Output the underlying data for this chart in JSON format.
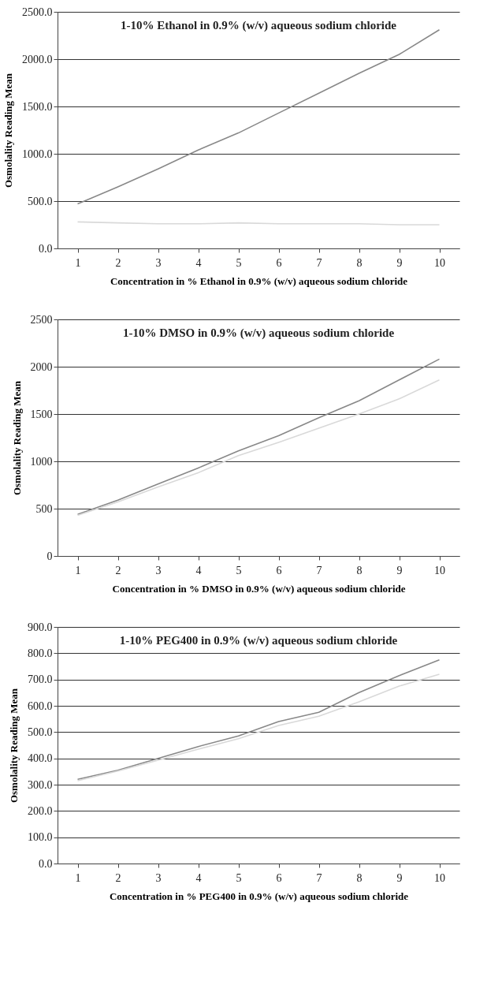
{
  "chart_data": [
    {
      "type": "line",
      "title": "1-10% Ethanol in 0.9% (w/v) aqueous sodium chloride",
      "xlabel": "Concentration in % Ethanol in 0.9% (w/v) aqueous sodium chloride",
      "ylabel": "Osmolality Reading Mean",
      "categories": [
        "1",
        "2",
        "3",
        "4",
        "5",
        "6",
        "7",
        "8",
        "9",
        "10"
      ],
      "series": [
        {
          "color": "#888888",
          "values": [
            470,
            650,
            840,
            1040,
            1220,
            1430,
            1640,
            1850,
            2050,
            2310
          ]
        },
        {
          "color": "#d9d9d9",
          "values": [
            280,
            270,
            260,
            260,
            270,
            260,
            260,
            260,
            250,
            250
          ]
        }
      ],
      "ylim": [
        0,
        2500
      ],
      "yticks": [
        {
          "value": 0,
          "label": "0.0"
        },
        {
          "value": 500,
          "label": "500.0"
        },
        {
          "value": 1000,
          "label": "1000.0"
        },
        {
          "value": 1500,
          "label": "1500.0"
        },
        {
          "value": 2000,
          "label": "2000.0"
        },
        {
          "value": 2500,
          "label": "2500.0"
        }
      ],
      "grid": "y",
      "marker": "none",
      "line_style": "solid"
    },
    {
      "type": "line",
      "title": "1-10% DMSO in 0.9% (w/v) aqueous sodium chloride",
      "xlabel": "Concentration in % DMSO in 0.9% (w/v) aqueous sodium chloride",
      "ylabel": "Osmolality Reading Mean",
      "categories": [
        "1",
        "2",
        "3",
        "4",
        "5",
        "6",
        "7",
        "8",
        "9",
        "10"
      ],
      "series": [
        {
          "color": "#888888",
          "values": [
            440,
            590,
            760,
            930,
            1110,
            1270,
            1460,
            1640,
            1860,
            2080
          ]
        },
        {
          "color": "#d9d9d9",
          "values": [
            430,
            570,
            730,
            880,
            1060,
            1200,
            1350,
            1500,
            1660,
            1860
          ]
        }
      ],
      "ylim": [
        0,
        2500
      ],
      "yticks": [
        0,
        500,
        1000,
        1500,
        2000,
        2500
      ],
      "grid": "y",
      "marker": "none",
      "line_style": "solid"
    },
    {
      "type": "line",
      "title": "1-10% PEG400 in 0.9% (w/v) aqueous sodium chloride",
      "xlabel": "Concentration in % PEG400 in 0.9% (w/v) aqueous sodium chloride",
      "ylabel": "Osmolality Reading Mean",
      "categories": [
        "1",
        "2",
        "3",
        "4",
        "5",
        "6",
        "7",
        "8",
        "9",
        "10"
      ],
      "series": [
        {
          "color": "#888888",
          "values": [
            320,
            355,
            400,
            445,
            485,
            540,
            575,
            650,
            715,
            775
          ]
        },
        {
          "color": "#d9d9d9",
          "values": [
            315,
            352,
            393,
            435,
            475,
            525,
            560,
            615,
            675,
            720
          ]
        }
      ],
      "ylim": [
        0,
        900
      ],
      "yticks": [
        {
          "value": 0,
          "label": "0.0"
        },
        {
          "value": 100,
          "label": "100.0"
        },
        {
          "value": 200,
          "label": "200.0"
        },
        {
          "value": 300,
          "label": "300.0"
        },
        {
          "value": 400,
          "label": "400.0"
        },
        {
          "value": 500,
          "label": "500.0"
        },
        {
          "value": 600,
          "label": "600.0"
        },
        {
          "value": 700,
          "label": "700.0"
        },
        {
          "value": 800,
          "label": "800.0"
        },
        {
          "value": 900,
          "label": "900.0"
        }
      ],
      "grid": "y",
      "marker": "none",
      "line_style": "solid"
    }
  ]
}
